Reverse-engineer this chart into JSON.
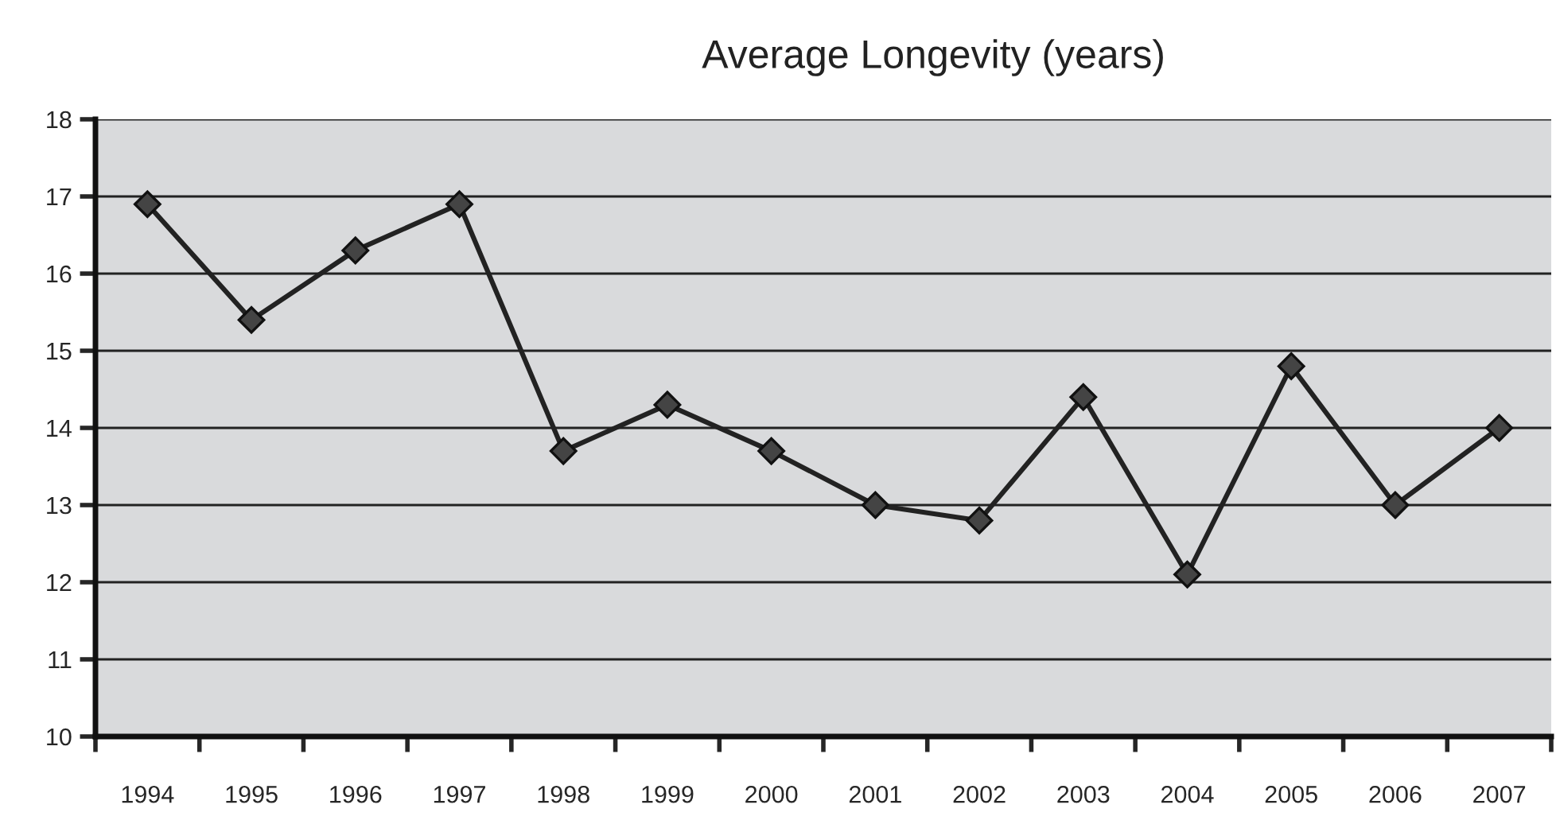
{
  "chart_data": {
    "type": "line",
    "title": "Average Longevity (years)",
    "categories": [
      "1994",
      "1995",
      "1996",
      "1997",
      "1998",
      "1999",
      "2000",
      "2001",
      "2002",
      "2003",
      "2004",
      "2005",
      "2006",
      "2007"
    ],
    "series": [
      {
        "color": "#222222",
        "values": [
          16.9,
          15.4,
          16.3,
          16.9,
          13.7,
          14.3,
          13.7,
          13.0,
          12.8,
          14.4,
          12.1,
          14.8,
          13.0,
          14.0
        ]
      }
    ],
    "ylim": [
      10,
      18
    ],
    "yticks": [
      10,
      11,
      12,
      13,
      14,
      15,
      16,
      17,
      18
    ],
    "grid": "y",
    "marker": "diamond",
    "line_style": "solid"
  }
}
